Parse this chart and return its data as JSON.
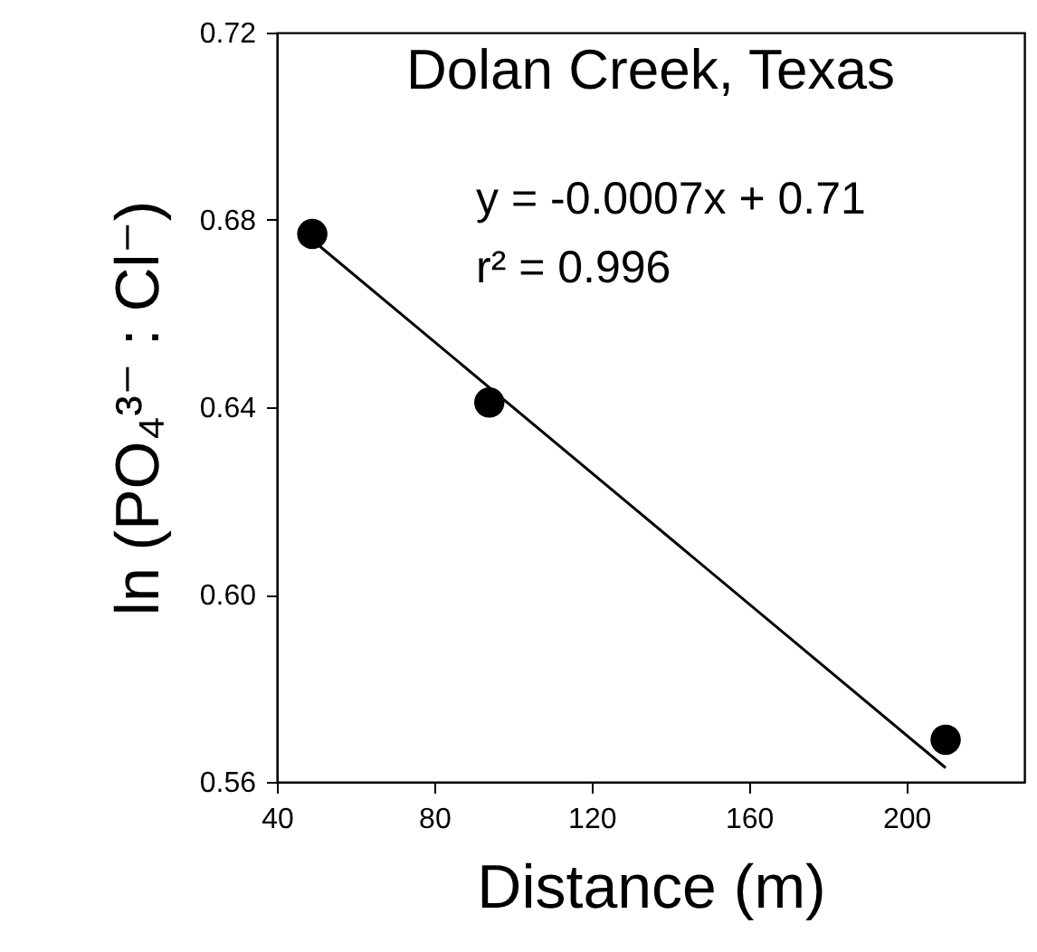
{
  "chart_data": {
    "type": "scatter",
    "title": "Dolan Creek, Texas",
    "xlabel": "Distance (m)",
    "ylabel": "ln (PO₄³⁻ : Cl⁻)",
    "xlim": [
      40,
      230
    ],
    "xticks": [
      40,
      80,
      120,
      160,
      200
    ],
    "ylim": [
      0.56,
      0.72
    ],
    "yticks": [
      0.56,
      {
        "value": 0.6,
        "label": "0.60"
      },
      0.64,
      0.68,
      0.72
    ],
    "grid": false,
    "marker": "circle",
    "series": [
      {
        "color": "#000000",
        "x": [
          49,
          94,
          210
        ],
        "values": [
          0.677,
          0.641,
          0.569
        ]
      },
      {
        "type": "line",
        "color": "#000000",
        "x": [
          49,
          210
        ],
        "values": [
          0.6757,
          0.563
        ],
        "marker": "none"
      }
    ],
    "annotations": [
      "y = -0.0007x + 0.71",
      "r² = 0.996"
    ]
  }
}
